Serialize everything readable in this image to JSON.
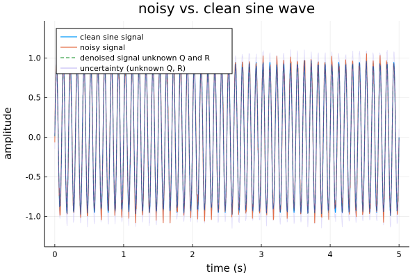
{
  "chart_data": {
    "type": "line",
    "title": "noisy vs. clean sine wave",
    "xlabel": "time (s)",
    "ylabel": "amplitude",
    "xlim": [
      -0.15,
      5.15
    ],
    "ylim": [
      -1.38,
      1.47
    ],
    "grid": true,
    "legend_position": "top-left",
    "x_ticks": [
      {
        "value": 0,
        "label": "0"
      },
      {
        "value": 1,
        "label": "1"
      },
      {
        "value": 2,
        "label": "2"
      },
      {
        "value": 3,
        "label": "3"
      },
      {
        "value": 4,
        "label": "4"
      },
      {
        "value": 5,
        "label": "5"
      }
    ],
    "y_ticks": [
      {
        "value": 1.0,
        "label": "1.0"
      },
      {
        "value": 0.5,
        "label": "0.5"
      },
      {
        "value": 0.0,
        "label": "0.0"
      },
      {
        "value": -0.5,
        "label": "-0.5"
      },
      {
        "value": -1.0,
        "label": "-1.0"
      }
    ],
    "signal": {
      "frequency_hz": 10,
      "clean_amplitude": 0.95,
      "t_start": 0,
      "t_end": 5,
      "noisy_range": [
        -1.27,
        1.29
      ],
      "uncertainty_band": 0.14
    },
    "series": [
      {
        "name": "clean sine signal",
        "color": "#009AFA",
        "style": "solid"
      },
      {
        "name": "noisy signal",
        "color": "#E36F47",
        "style": "solid"
      },
      {
        "name": "denoised signal unknown Q and R",
        "color": "#3EA44E",
        "style": "dashed"
      },
      {
        "name": "uncertainty (unknown Q, R)",
        "color": "#C6BFF5",
        "style": "band"
      }
    ]
  }
}
